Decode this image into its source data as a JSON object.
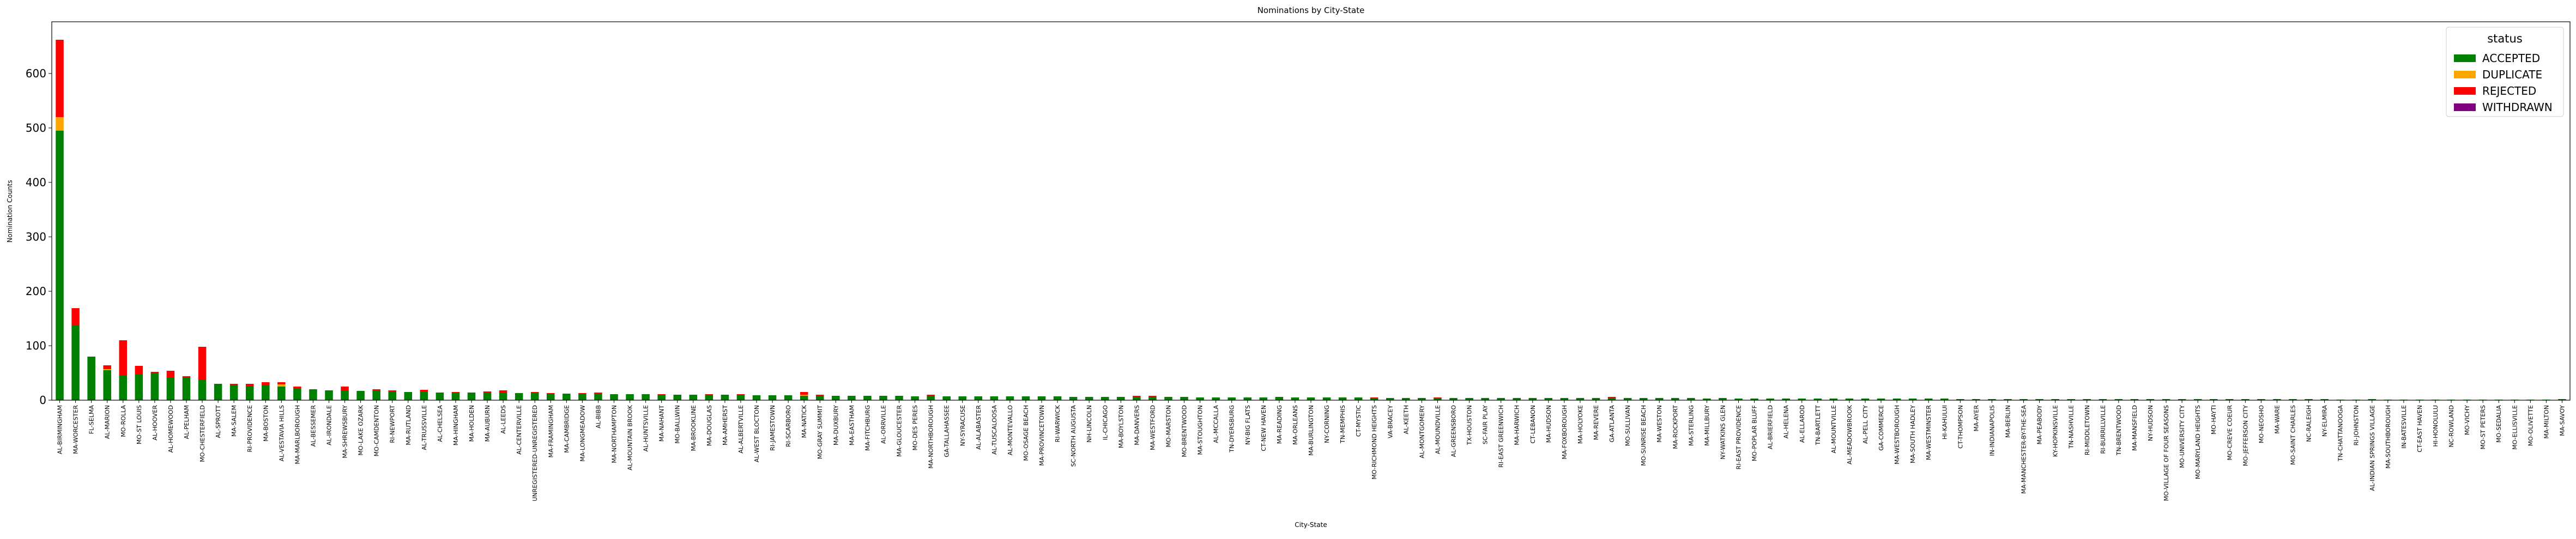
{
  "chart_data": {
    "type": "bar",
    "stacked": true,
    "title": "Nominations by City-State",
    "xlabel": "City-State",
    "ylabel": "Nomination Counts",
    "legend_title": "status",
    "legend_position": "upper right",
    "ylim": [
      0,
      695
    ],
    "yticks": [
      0,
      100,
      200,
      300,
      400,
      500,
      600
    ],
    "categories": [
      "AL-BIRMINGHAM",
      "MA-WORCESTER",
      "FL-SELMA",
      "AL-MARION",
      "MO-ROLLA",
      "MO-ST LOUIS",
      "AL-HOOVER",
      "AL-HOMEWOOD",
      "AL-PELHAM",
      "MO-CHESTERFIELD",
      "AL-SPROTT",
      "MA-SALEM",
      "RI-PROVIDENCE",
      "MA-BOSTON",
      "AL-VESTAVIA HILLS",
      "MA-MARLBOROUGH",
      "AL-BESSEMER",
      "AL-IRONDALE",
      "MA-SHREWSBURY",
      "MO-LAKE OZARK",
      "MO-CAMDENTON",
      "RI-NEWPORT",
      "MA-RUTLAND",
      "AL-TRUSSVILLE",
      "AL-CHELSEA",
      "MA-HINGHAM",
      "MA-HOLDEN",
      "MA-AUBURN",
      "AL-LEEDS",
      "AL-CENTERVILLE",
      "UNREGISTERED-UNREGISTERED",
      "MA-FRAMINGHAM",
      "MA-CAMBRIDGE",
      "MA-LONGMEADOW",
      "AL-BIBB",
      "MA-NORTHAMPTON",
      "AL-MOUNTAIN BROOK",
      "AL-HUNTSVILLE",
      "MA-NAHANT",
      "MO-BALLWIN",
      "MA-BROOKLINE",
      "MA-DOUGLAS",
      "MA-AMHERST",
      "AL-ALBERTVILLE",
      "AL-WEST BLOCTON",
      "RI-JAMESTOWN",
      "RI-SCARBORO",
      "MA-NATICK",
      "MO-GRAY SUMMIT",
      "MA-DUXBURY",
      "MA-EASTHAM",
      "MA-FITCHBURG",
      "AL-ORRVILLE",
      "MA-GLOUCESTER",
      "MO-DES PERES",
      "MA-NORTHBOROUGH",
      "GA-TALLAHASSEE",
      "NY-SYRACUSE",
      "AL-ALABASTER",
      "AL-TUSCALOOSA",
      "AL-MONTEVALLO",
      "MO-OSAGE BEACH",
      "MA-PROVINCETOWN",
      "RI-WARWICK",
      "SC-NORTH AUGUSTA",
      "NH-LINCOLN",
      "IL-CHICAGO",
      "MA-BOYLSTON",
      "MA-DANVERS",
      "MA-WESTFORD",
      "MO-MARSTON",
      "MO-BRENTWOOD",
      "MA-STOUGHTON",
      "AL-MCCALLA",
      "TN-DYERSBURG",
      "NY-BIG FLATS",
      "CT-NEW HAVEN",
      "MA-READING",
      "MA-ORLEANS",
      "MA-BURLINGTON",
      "NY-CORNING",
      "TN-MEMPHIS",
      "CT-MYSTIC",
      "MO-RICHMOND HEIGHTS",
      "VA-BRACEY",
      "AL-KEETH",
      "AL-MONTGOMERY",
      "AL-MOUNDVILLE",
      "AL-GREENSBORO",
      "TX-HOUSTON",
      "SC-FAIR PLAY",
      "RI-EAST GREENWICH",
      "MA-HARWICH",
      "CT-LEBANON",
      "MA-HUDSON",
      "MA-FOXBOROUGH",
      "MA-HOLYOKE",
      "MA-REVERE",
      "GA-ATLANTA",
      "MO-SULLIVAN",
      "MO-SUNRISE BEACH",
      "MA-WESTON",
      "MA-ROCKPORT",
      "MA-STERLING",
      "MA-MILLBURY",
      "NY-WATKINS GLEN",
      "RI-EAST PROVIDENCE",
      "MO-POPLAR BLUFF",
      "AL-BRIERFIELD",
      "AL-HELENA",
      "AL-ELLAROD",
      "TN-BARTLETT",
      "AL-MOUNTVILLE",
      "AL-MEADOWBROOK",
      "AL-PELL CITY",
      "GA-COMMERCE",
      "MA-WESTBOROUGH",
      "MA-SOUTH HADLEY",
      "MA-WESTMINSTER",
      "HI-KAHULUI",
      "CT-THOMPSON",
      "MA-AYER",
      "IN-INDIANAPOLIS",
      "MA-BERLIN",
      "MA-MANCHESTER-BY-THE-SEA",
      "MA-PEABODY",
      "KY-HOPKINSVILLE",
      "TN-NASHVILLE",
      "RI-MIDDLETOWN",
      "RI-BURRILLVILLE",
      "TN-BRENTWOOD",
      "MA-MANSFIELD",
      "NY-HUDSON",
      "MO-VILLAGE OF FOUR SEASONS",
      "MO-UNIVERSITY CITY",
      "MO-MARYLAND HEIGHTS",
      "MO-HAYTI",
      "MO-CREVE COEUR",
      "MO-JEFFERSON CITY",
      "MO-NEOSHO",
      "MA-WARE",
      "MO-SAINT CHARLES",
      "NC-RALEIGH",
      "NY-ELMIRA",
      "TN-CHATTANOOGA",
      "RI-JOHNSTON",
      "AL-INDIAN SPRINGS VILLAGE",
      "MA-SOUTHBOROUGH",
      "IN-BATESVILLE",
      "CT-EAST HAVEN",
      "HI-HONOLULU",
      "NC-ROWLAND",
      "MO-VICHY",
      "MO-ST PETERS",
      "MO-SEDALIA",
      "MO-ELLISVILLE",
      "MO-OLIVETTE",
      "MA-MILTON",
      "MA-SAVOY"
    ],
    "series": [
      {
        "name": "ACCEPTED",
        "color": "#008000",
        "values": [
          495,
          137,
          80,
          55,
          45,
          48,
          50,
          42,
          42,
          38,
          30,
          28,
          25,
          27,
          25,
          22,
          20,
          18,
          18,
          17,
          17,
          16,
          15,
          15,
          14,
          14,
          14,
          13,
          13,
          13,
          13,
          12,
          12,
          12,
          12,
          11,
          11,
          11,
          10,
          10,
          10,
          10,
          10,
          10,
          9,
          9,
          9,
          8,
          8,
          8,
          8,
          8,
          8,
          8,
          7,
          7,
          7,
          7,
          7,
          7,
          7,
          7,
          7,
          7,
          6,
          6,
          6,
          6,
          5,
          6,
          6,
          6,
          5,
          5,
          5,
          5,
          5,
          5,
          5,
          5,
          5,
          5,
          5,
          4,
          4,
          4,
          4,
          4,
          4,
          4,
          4,
          4,
          4,
          4,
          4,
          4,
          4,
          4,
          3,
          4,
          4,
          4,
          4,
          4,
          3,
          3,
          3,
          3,
          3,
          3,
          3,
          3,
          3,
          3,
          3,
          3,
          3,
          3,
          3,
          3,
          2,
          2,
          2,
          2,
          2,
          2,
          2,
          2,
          2,
          2,
          2,
          2,
          2,
          2,
          2,
          2,
          2,
          2,
          2,
          2,
          2,
          1,
          2,
          2,
          1,
          1,
          1,
          1,
          1,
          1,
          1,
          1,
          1,
          1,
          1,
          1,
          1,
          1,
          1
        ]
      },
      {
        "name": "DUPLICATE",
        "color": "#ffa500",
        "values": [
          25,
          0,
          0,
          2,
          0,
          0,
          0,
          0,
          0,
          0,
          0,
          0,
          0,
          0,
          4,
          0,
          0,
          0,
          0,
          0,
          0,
          0,
          0,
          0,
          0,
          0,
          0,
          0,
          0,
          0,
          0,
          0,
          0,
          0,
          0,
          0,
          0,
          0,
          0,
          0,
          0,
          0,
          0,
          0,
          0,
          0,
          0,
          2,
          0,
          0,
          0,
          0,
          0,
          0,
          0,
          0,
          0,
          0,
          0,
          0,
          0,
          0,
          0,
          0,
          0,
          0,
          0,
          0,
          0,
          0,
          0,
          0,
          0,
          0,
          0,
          0,
          0,
          0,
          0,
          0,
          0,
          0,
          0,
          0,
          0,
          0,
          0,
          0,
          0,
          0,
          0,
          0,
          0,
          0,
          0,
          0,
          0,
          0,
          0,
          0,
          0,
          0,
          0,
          0,
          0,
          0,
          0,
          0,
          0,
          0,
          0,
          0,
          0,
          0,
          0,
          0,
          0,
          0,
          0,
          0,
          0,
          0,
          0,
          0,
          0,
          0,
          0,
          0,
          0,
          0,
          0,
          0,
          0,
          0,
          0,
          0,
          0,
          0,
          0,
          0,
          0,
          0,
          0,
          0,
          0,
          0,
          0,
          0,
          0,
          0,
          0,
          0,
          0,
          0,
          0,
          0,
          0,
          0,
          0
        ]
      },
      {
        "name": "REJECTED",
        "color": "#ff0000",
        "values": [
          142,
          32,
          0,
          7,
          65,
          15,
          2,
          12,
          2,
          60,
          0,
          2,
          5,
          6,
          4,
          3,
          0,
          0,
          7,
          0,
          3,
          2,
          0,
          4,
          0,
          1,
          0,
          3,
          5,
          0,
          2,
          1,
          0,
          1,
          2,
          0,
          0,
          0,
          1,
          0,
          0,
          1,
          0,
          1,
          0,
          0,
          0,
          5,
          2,
          0,
          0,
          0,
          0,
          0,
          0,
          3,
          0,
          0,
          0,
          0,
          0,
          0,
          0,
          0,
          0,
          0,
          0,
          0,
          3,
          2,
          0,
          0,
          0,
          0,
          0,
          0,
          0,
          1,
          0,
          0,
          0,
          0,
          0,
          1,
          0,
          0,
          0,
          1,
          0,
          0,
          0,
          0,
          0,
          0,
          0,
          0,
          0,
          0,
          3,
          0,
          0,
          0,
          0,
          0,
          0,
          1,
          0,
          0,
          0,
          0,
          0,
          0,
          0,
          0,
          0,
          0,
          0,
          0,
          0,
          0,
          0,
          0,
          0,
          0,
          0,
          0,
          0,
          0,
          0,
          0,
          0,
          0,
          0,
          0,
          0,
          0,
          0,
          0,
          0,
          0,
          0,
          1,
          0,
          0,
          0,
          0,
          1,
          0,
          0,
          0,
          0,
          0,
          0,
          0,
          0,
          0,
          0,
          0,
          1
        ]
      },
      {
        "name": "WITHDRAWN",
        "color": "#800080",
        "values": [
          0,
          0,
          0,
          0,
          0,
          0,
          0,
          0,
          0,
          0,
          0,
          0,
          0,
          0,
          0,
          0,
          0,
          0,
          0,
          0,
          0,
          0,
          0,
          0,
          0,
          0,
          0,
          0,
          0,
          0,
          0,
          0,
          0,
          0,
          0,
          0,
          0,
          0,
          0,
          0,
          0,
          0,
          0,
          0,
          0,
          0,
          0,
          0,
          0,
          0,
          0,
          0,
          0,
          0,
          0,
          0,
          0,
          0,
          0,
          0,
          0,
          0,
          0,
          0,
          0,
          0,
          0,
          0,
          0,
          0,
          0,
          0,
          0,
          0,
          0,
          0,
          0,
          0,
          0,
          0,
          0,
          0,
          0,
          0,
          0,
          0,
          0,
          0,
          0,
          0,
          0,
          0,
          0,
          0,
          0,
          0,
          0,
          0,
          0,
          0,
          0,
          0,
          0,
          0,
          0,
          0,
          0,
          0,
          0,
          0,
          0,
          0,
          0,
          0,
          0,
          0,
          0,
          0,
          0,
          0,
          0,
          0,
          0,
          0,
          0,
          0,
          0,
          0,
          0,
          0,
          0,
          0,
          0,
          0,
          0,
          0,
          0,
          0,
          0,
          0,
          0,
          0,
          0,
          0,
          0,
          0,
          0,
          0,
          0,
          0,
          0,
          0,
          0,
          0,
          0,
          0,
          0,
          0,
          0
        ]
      }
    ]
  }
}
